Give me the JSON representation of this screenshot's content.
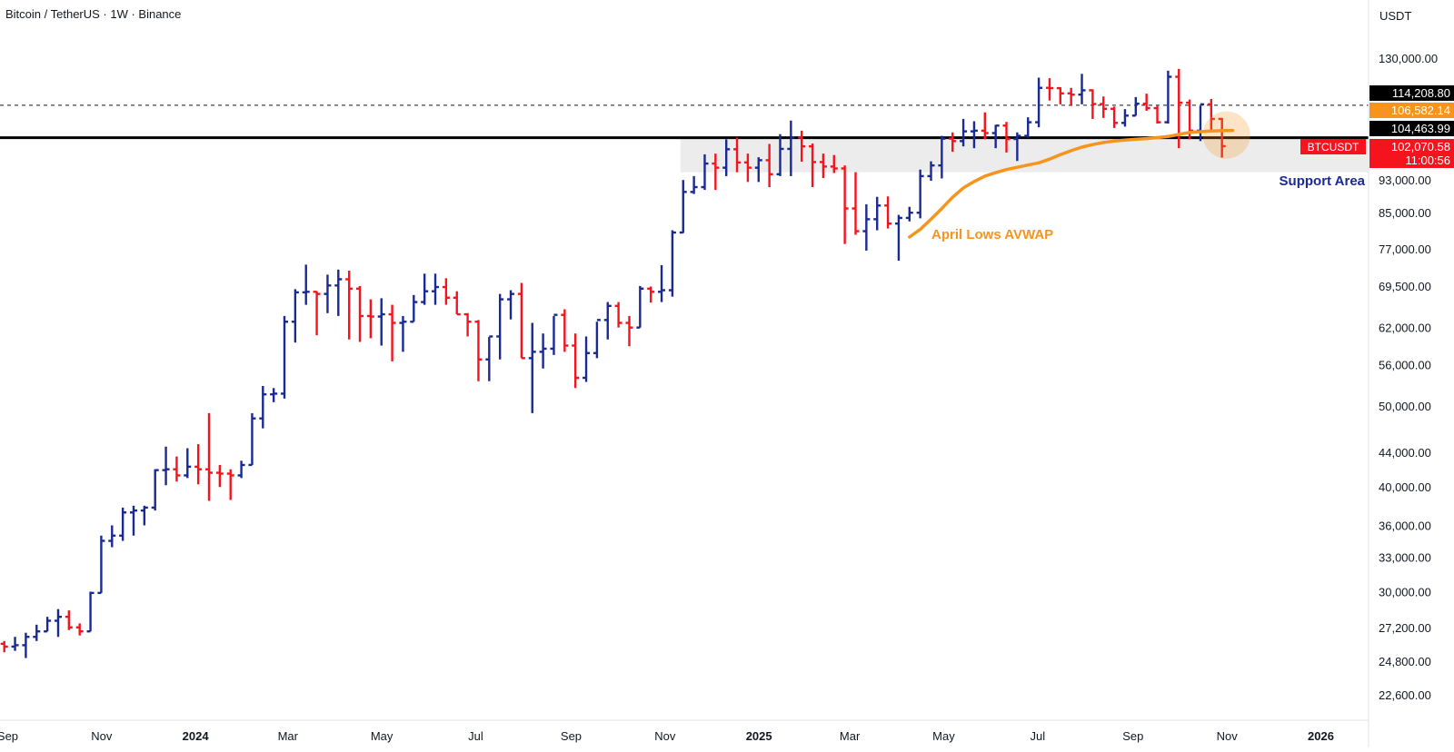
{
  "header": {
    "symbol_title": "Bitcoin / TetherUS · 1W · Binance",
    "currency_label": "USDT"
  },
  "colors": {
    "up_bar": "#1a2a94",
    "down_bar": "#f5141e",
    "avwap": "#f7941d",
    "support_zone": "#ececec",
    "support_text": "#1a2a94",
    "price_tag_black": "#000000",
    "price_tag_orange": "#f7941d",
    "price_tag_red": "#f5141e"
  },
  "annotations": {
    "support_area": "Support Area",
    "avwap_label": "April Lows AVWAP"
  },
  "price_tags": [
    {
      "value": "114,208.80",
      "color": "#000000",
      "level": 114208.8
    },
    {
      "value": "106,582.14",
      "color": "#f7941d",
      "level": 106582.14
    },
    {
      "value": "104,463.99",
      "color": "#000000",
      "level": 104463.99
    },
    {
      "value": "102,070.58",
      "color": "#f5141e",
      "level": 102070.58,
      "symbol": "BTCUSDT",
      "countdown": "11:00:56"
    }
  ],
  "chart_data": {
    "type": "ohlc",
    "title": "Bitcoin / TetherUS · 1W · Binance",
    "scale": "log",
    "ylim": [
      21000,
      140000
    ],
    "xlim": [
      "2023-08-27",
      "2026-02-01"
    ],
    "y_ticks": [
      "130,000.00",
      "93,000.00",
      "85,000.00",
      "77,000.00",
      "69,500.00",
      "62,000.00",
      "56,000.00",
      "50,000.00",
      "44,000.00",
      "40,000.00",
      "36,000.00",
      "33,000.00",
      "30,000.00",
      "27,200.00",
      "24,800.00",
      "22,600.00"
    ],
    "y_tick_values": [
      130000,
      93000,
      85000,
      77000,
      69500,
      62000,
      56000,
      50000,
      44000,
      40000,
      36000,
      33000,
      30000,
      27200,
      24800,
      22600
    ],
    "x_ticks": [
      {
        "label": "Sep",
        "date": "2023-09-01",
        "bold": false
      },
      {
        "label": "Nov",
        "date": "2023-11-01",
        "bold": false
      },
      {
        "label": "2024",
        "date": "2024-01-01",
        "bold": true
      },
      {
        "label": "Mar",
        "date": "2024-03-01",
        "bold": false
      },
      {
        "label": "May",
        "date": "2024-05-01",
        "bold": false
      },
      {
        "label": "Jul",
        "date": "2024-07-01",
        "bold": false
      },
      {
        "label": "Sep",
        "date": "2024-09-01",
        "bold": false
      },
      {
        "label": "Nov",
        "date": "2024-11-01",
        "bold": false
      },
      {
        "label": "2025",
        "date": "2025-01-01",
        "bold": true
      },
      {
        "label": "Mar",
        "date": "2025-03-01",
        "bold": false
      },
      {
        "label": "May",
        "date": "2025-05-01",
        "bold": false
      },
      {
        "label": "Jul",
        "date": "2025-07-01",
        "bold": false
      },
      {
        "label": "Sep",
        "date": "2025-09-01",
        "bold": false
      },
      {
        "label": "Nov",
        "date": "2025-11-01",
        "bold": false
      },
      {
        "label": "2026",
        "date": "2026-01-01",
        "bold": true
      }
    ],
    "bars_start": "2023-08-28",
    "bars_interval_days": 7,
    "ohlc": [
      [
        26000,
        26200,
        25400,
        25800
      ],
      [
        25800,
        26500,
        25500,
        25900
      ],
      [
        25900,
        26800,
        25000,
        26500
      ],
      [
        26500,
        27400,
        26200,
        26900
      ],
      [
        26900,
        28000,
        26900,
        27700
      ],
      [
        27700,
        28600,
        26500,
        28000
      ],
      [
        28000,
        28500,
        27000,
        27200
      ],
      [
        27200,
        27500,
        26600,
        26900
      ],
      [
        26900,
        30000,
        26900,
        29900
      ],
      [
        29900,
        35000,
        29900,
        34500
      ],
      [
        34500,
        36000,
        33900,
        35000
      ],
      [
        35000,
        37800,
        34500,
        37300
      ],
      [
        37300,
        38000,
        35000,
        37500
      ],
      [
        37500,
        38000,
        36000,
        37800
      ],
      [
        37800,
        42000,
        37500,
        41900
      ],
      [
        41900,
        44700,
        40200,
        42000
      ],
      [
        42000,
        43500,
        40600,
        41300
      ],
      [
        41300,
        44500,
        41000,
        42300
      ],
      [
        42300,
        45000,
        40300,
        42000
      ],
      [
        42000,
        49000,
        38500,
        41600
      ],
      [
        41600,
        42500,
        40000,
        41500
      ],
      [
        41500,
        42000,
        38600,
        41300
      ],
      [
        41300,
        43000,
        41000,
        42500
      ],
      [
        42500,
        49000,
        42500,
        48300
      ],
      [
        48300,
        52800,
        47000,
        51600
      ],
      [
        51600,
        52500,
        50500,
        51700
      ],
      [
        51700,
        64000,
        51000,
        63000
      ],
      [
        63000,
        68900,
        59500,
        68300
      ],
      [
        68300,
        73700,
        66000,
        68400
      ],
      [
        68400,
        68500,
        60700,
        68000
      ],
      [
        68000,
        71700,
        64500,
        69600
      ],
      [
        69600,
        72700,
        64000,
        70800
      ],
      [
        70800,
        72500,
        60000,
        69000
      ],
      [
        69000,
        69500,
        59600,
        64000
      ],
      [
        64000,
        67000,
        60200,
        63900
      ],
      [
        63900,
        67200,
        59000,
        64300
      ],
      [
        64300,
        66000,
        56500,
        62800
      ],
      [
        62800,
        64000,
        58000,
        63000
      ],
      [
        63000,
        67800,
        63000,
        66500
      ],
      [
        66500,
        71900,
        66000,
        68500
      ],
      [
        68500,
        71900,
        66000,
        69300
      ],
      [
        69300,
        71000,
        66000,
        67300
      ],
      [
        67300,
        68500,
        64300,
        64300
      ],
      [
        64300,
        64500,
        60500,
        63000
      ],
      [
        63000,
        63300,
        53500,
        56800
      ],
      [
        56800,
        60400,
        53500,
        60500
      ],
      [
        60500,
        68000,
        56800,
        67000
      ],
      [
        67000,
        68700,
        63400,
        68000
      ],
      [
        68000,
        70100,
        57000,
        57000
      ],
      [
        57000,
        62800,
        49000,
        58000
      ],
      [
        58000,
        61000,
        55400,
        58500
      ],
      [
        58500,
        64000,
        57500,
        64200
      ],
      [
        64200,
        65200,
        58000,
        59000
      ],
      [
        59000,
        61000,
        52500,
        54000
      ],
      [
        54000,
        60500,
        53400,
        57800
      ],
      [
        57800,
        63000,
        57000,
        63300
      ],
      [
        63300,
        66500,
        60000,
        65800
      ],
      [
        65800,
        66500,
        62000,
        62800
      ],
      [
        62800,
        64000,
        58900,
        62000
      ],
      [
        62000,
        69500,
        62000,
        69000
      ],
      [
        69000,
        69400,
        66400,
        68400
      ],
      [
        68400,
        73600,
        66500,
        68700
      ],
      [
        68700,
        81000,
        67500,
        80500
      ],
      [
        80500,
        93000,
        80400,
        90000
      ],
      [
        90000,
        94000,
        89500,
        91200
      ],
      [
        91200,
        99800,
        90500,
        97300
      ],
      [
        97300,
        100000,
        90500,
        96200
      ],
      [
        96200,
        104000,
        94000,
        101200
      ],
      [
        101200,
        104500,
        95000,
        97600
      ],
      [
        97600,
        100000,
        92500,
        96200
      ],
      [
        96200,
        99000,
        92500,
        98200
      ],
      [
        98200,
        102700,
        91200,
        94500
      ],
      [
        94500,
        105500,
        94000,
        101300
      ],
      [
        101300,
        109500,
        94000,
        104500
      ],
      [
        104500,
        106500,
        97800,
        102000
      ],
      [
        102000,
        102800,
        91200,
        97700
      ],
      [
        97700,
        100000,
        93500,
        96500
      ],
      [
        96500,
        99600,
        94800,
        96000
      ],
      [
        96000,
        96800,
        78000,
        86000
      ],
      [
        86000,
        95000,
        80000,
        80800
      ],
      [
        80800,
        87000,
        76600,
        83500
      ],
      [
        83500,
        88800,
        81000,
        86700
      ],
      [
        86700,
        88900,
        81400,
        82500
      ],
      [
        82500,
        84500,
        74500,
        83800
      ],
      [
        83800,
        86400,
        83000,
        85000
      ],
      [
        85000,
        95700,
        83700,
        94000
      ],
      [
        94000,
        97900,
        92800,
        96800
      ],
      [
        96800,
        105000,
        93400,
        104200
      ],
      [
        104200,
        106000,
        100500,
        103500
      ],
      [
        103500,
        110000,
        102000,
        106300
      ],
      [
        106300,
        109300,
        101500,
        106500
      ],
      [
        106500,
        112000,
        104000,
        105800
      ],
      [
        105800,
        108200,
        101500,
        108000
      ],
      [
        108000,
        109100,
        100300,
        104100
      ],
      [
        104100,
        106000,
        98000,
        105000
      ],
      [
        105000,
        110500,
        104500,
        109000
      ],
      [
        109000,
        123200,
        107500,
        119800
      ],
      [
        119800,
        123000,
        115700,
        119700
      ],
      [
        119700,
        120000,
        114500,
        118000
      ],
      [
        118000,
        119800,
        114000,
        117600
      ],
      [
        117600,
        124500,
        114500,
        119000
      ],
      [
        119000,
        119300,
        110000,
        114600
      ],
      [
        114600,
        117000,
        110300,
        113100
      ],
      [
        113100,
        113800,
        107300,
        108800
      ],
      [
        108800,
        113000,
        107700,
        111000
      ],
      [
        111000,
        116800,
        111000,
        114700
      ],
      [
        114700,
        117900,
        112500,
        113300
      ],
      [
        113300,
        114000,
        108600,
        109000
      ],
      [
        109000,
        125600,
        108600,
        123500
      ],
      [
        123500,
        126200,
        101500,
        115000
      ],
      [
        115000,
        116000,
        104000,
        106500
      ],
      [
        106500,
        114000,
        103500,
        114500
      ],
      [
        114500,
        116200,
        106300,
        110000
      ],
      [
        110000,
        110300,
        98900,
        102070.58
      ]
    ],
    "series": [
      {
        "name": "April Lows AVWAP",
        "anchor": "2025-04-07",
        "values": [
          [
            "2025-04-07",
            79500
          ],
          [
            "2025-04-14",
            81200
          ],
          [
            "2025-04-21",
            83500
          ],
          [
            "2025-04-28",
            86000
          ],
          [
            "2025-05-05",
            88700
          ],
          [
            "2025-05-12",
            91000
          ],
          [
            "2025-05-19",
            92600
          ],
          [
            "2025-05-26",
            94000
          ],
          [
            "2025-06-02",
            94900
          ],
          [
            "2025-06-09",
            95700
          ],
          [
            "2025-06-16",
            96300
          ],
          [
            "2025-06-23",
            96900
          ],
          [
            "2025-06-30",
            97500
          ],
          [
            "2025-07-07",
            98500
          ],
          [
            "2025-07-14",
            99700
          ],
          [
            "2025-07-21",
            100800
          ],
          [
            "2025-07-28",
            101800
          ],
          [
            "2025-08-04",
            102500
          ],
          [
            "2025-08-11",
            103100
          ],
          [
            "2025-08-18",
            103500
          ],
          [
            "2025-08-25",
            103800
          ],
          [
            "2025-09-01",
            104000
          ],
          [
            "2025-09-08",
            104200
          ],
          [
            "2025-09-15",
            104500
          ],
          [
            "2025-09-22",
            104800
          ],
          [
            "2025-09-29",
            105400
          ],
          [
            "2025-10-06",
            106000
          ],
          [
            "2025-10-13",
            106200
          ],
          [
            "2025-10-20",
            106400
          ],
          [
            "2025-10-27",
            106500
          ],
          [
            "2025-11-03",
            106582.14
          ]
        ]
      }
    ],
    "levels": [
      {
        "value": 104463.99,
        "style": "solid"
      },
      {
        "value": 114208.8,
        "style": "dashed"
      }
    ],
    "support_zone": {
      "low": 95000,
      "high": 104463.99,
      "from": "2024-11-11"
    },
    "highlight_point": {
      "date": "2025-10-27",
      "value": 104463.99
    }
  }
}
